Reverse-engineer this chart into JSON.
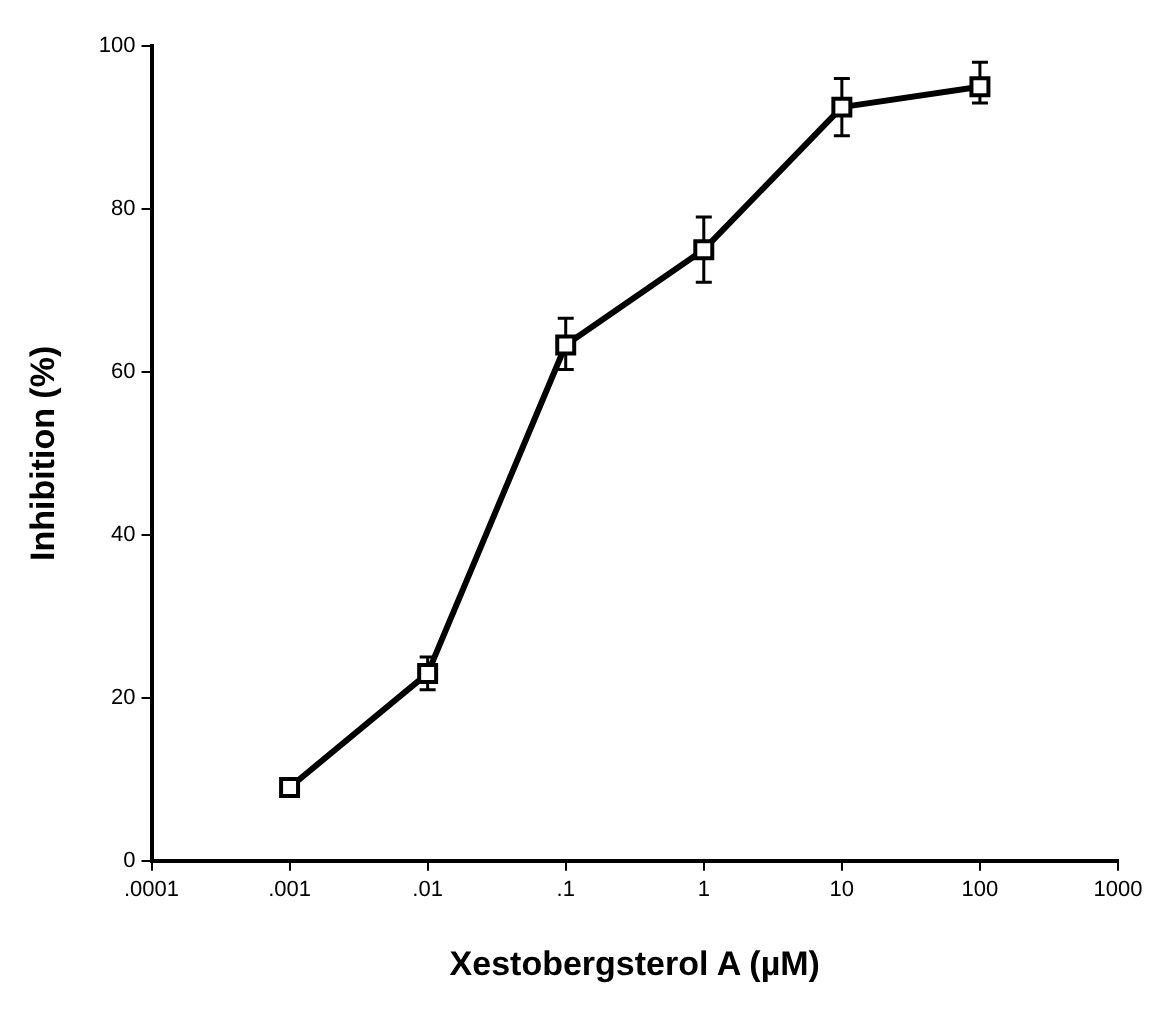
{
  "chart_data": {
    "type": "line",
    "xlabel": "Xestobergsterol A (µM)",
    "ylabel": "Inhibition (%)",
    "x": [
      0.001,
      0.01,
      0.1,
      1,
      10,
      100
    ],
    "series": [
      {
        "color": "#000000",
        "values": [
          9,
          23,
          63.3,
          75,
          92.5,
          95
        ],
        "errors": [
          null,
          [
            21,
            25
          ],
          [
            60.3,
            66.6
          ],
          [
            71,
            79
          ],
          [
            89,
            96
          ],
          [
            93,
            98
          ]
        ]
      }
    ],
    "log": "x",
    "xlim": [
      0.0001,
      1000
    ],
    "xticks": [
      {
        "value": 0.0001,
        "label": ".0001"
      },
      {
        "value": 0.001,
        "label": ".001"
      },
      {
        "value": 0.01,
        "label": ".01"
      },
      {
        "value": 0.1,
        "label": ".1"
      },
      1,
      10,
      100,
      1000
    ],
    "ylim": [
      0,
      100
    ],
    "yticks": [
      0,
      20,
      40,
      60,
      80,
      100
    ],
    "grid": false,
    "legend": false,
    "marker": "square",
    "line_style": "solid"
  }
}
